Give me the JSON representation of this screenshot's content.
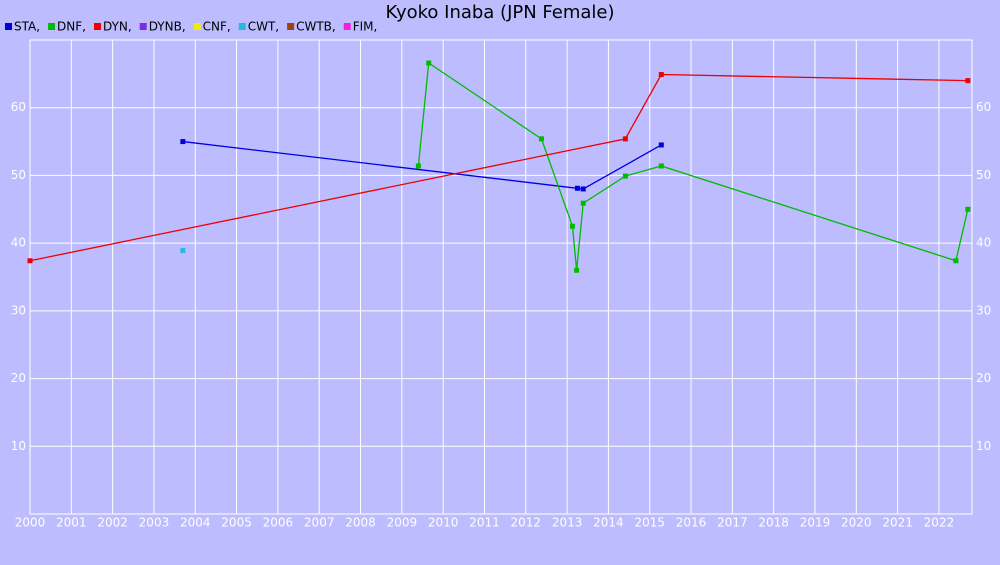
{
  "chart_data": {
    "type": "line",
    "title": "Kyoko Inaba (JPN Female)",
    "xlim": [
      2000,
      2022.8
    ],
    "ylim": [
      0,
      70
    ],
    "xticks": [
      2000,
      2001,
      2002,
      2003,
      2004,
      2005,
      2006,
      2007,
      2008,
      2009,
      2010,
      2011,
      2012,
      2013,
      2014,
      2015,
      2016,
      2017,
      2018,
      2019,
      2020,
      2021,
      2022
    ],
    "yticks": [
      10,
      20,
      30,
      40,
      50,
      60
    ],
    "grid": true,
    "series": [
      {
        "name": "STA,",
        "color": "#0000dd",
        "x": [
          2003.7,
          2013.25,
          2013.39,
          2015.28
        ],
        "values": [
          55.0,
          48.1,
          48.0,
          54.5
        ]
      },
      {
        "name": "DNF,",
        "color": "#00bb00",
        "x": [
          2009.4,
          2009.65,
          2012.38,
          2013.13,
          2013.23,
          2013.39,
          2014.41,
          2015.28,
          2022.41,
          2022.7
        ],
        "values": [
          51.4,
          66.6,
          55.4,
          42.5,
          36.0,
          45.9,
          49.9,
          51.4,
          37.4,
          45.0
        ]
      },
      {
        "name": "DYN,",
        "color": "#ee0000",
        "x": [
          2000.0,
          2014.41,
          2015.28,
          2022.7
        ],
        "values": [
          37.4,
          55.4,
          64.9,
          64.0
        ]
      },
      {
        "name": "DYNB,",
        "color": "#7a2ee0",
        "x": [],
        "values": []
      },
      {
        "name": "CNF,",
        "color": "#eeee00",
        "x": [],
        "values": []
      },
      {
        "name": "CWT,",
        "color": "#22bbdd",
        "x": [
          2003.7
        ],
        "values": [
          38.9
        ]
      },
      {
        "name": "CWTB,",
        "color": "#a04010",
        "x": [],
        "values": []
      },
      {
        "name": "FIM,",
        "color": "#ee22dd",
        "x": [],
        "values": []
      }
    ]
  }
}
